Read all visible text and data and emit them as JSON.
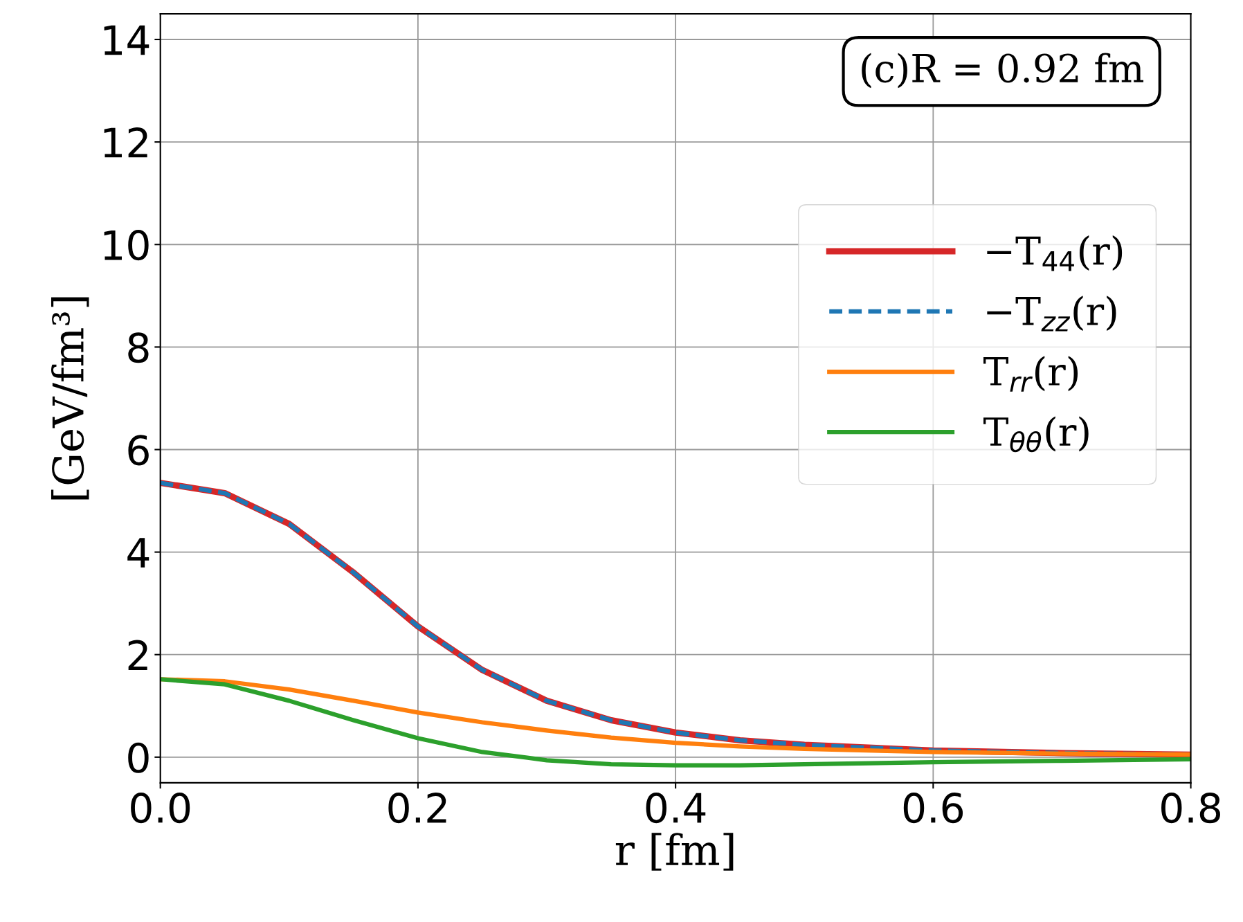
{
  "chart_data": {
    "type": "line",
    "xlabel": "r [fm]",
    "ylabel": "[GeV/fm³]",
    "annotations": [
      "(c)R = 0.92 fm"
    ],
    "x": [
      0.0,
      0.05,
      0.1,
      0.15,
      0.2,
      0.25,
      0.3,
      0.35,
      0.4,
      0.45,
      0.5,
      0.6,
      0.7,
      0.8
    ],
    "series": [
      {
        "name": "−T$_{44}$(r)",
        "color": "#d62728",
        "line_style": "solid",
        "values": [
          5.35,
          5.15,
          4.55,
          3.6,
          2.55,
          1.7,
          1.1,
          0.72,
          0.48,
          0.33,
          0.24,
          0.13,
          0.08,
          0.05
        ]
      },
      {
        "name": "−T$_{zz}$(r)",
        "color": "#1f77b4",
        "line_style": "dashed",
        "values": [
          5.35,
          5.15,
          4.55,
          3.6,
          2.55,
          1.7,
          1.1,
          0.72,
          0.48,
          0.33,
          0.24,
          0.13,
          0.08,
          0.05
        ]
      },
      {
        "name": "T$_{rr}$(r)",
        "color": "#ff7f0e",
        "line_style": "solid",
        "values": [
          1.52,
          1.48,
          1.32,
          1.1,
          0.87,
          0.68,
          0.52,
          0.38,
          0.28,
          0.21,
          0.16,
          0.1,
          0.07,
          0.05
        ]
      },
      {
        "name": "T$_{θθ}$(r)",
        "color": "#2ca02c",
        "line_style": "solid",
        "values": [
          1.52,
          1.42,
          1.1,
          0.72,
          0.37,
          0.1,
          -0.06,
          -0.14,
          -0.16,
          -0.16,
          -0.14,
          -0.1,
          -0.07,
          -0.04
        ]
      }
    ],
    "xlim": [
      0.0,
      0.8
    ],
    "xticks": [
      {
        "value": 0.0,
        "label": "0.0"
      },
      0.2,
      0.4,
      0.6,
      0.8
    ],
    "ylim": [
      -0.5,
      14.5
    ],
    "yticks": [
      0,
      2,
      4,
      6,
      8,
      10,
      12,
      14
    ],
    "grid": true,
    "legend": "center right",
    "marker": "none"
  }
}
